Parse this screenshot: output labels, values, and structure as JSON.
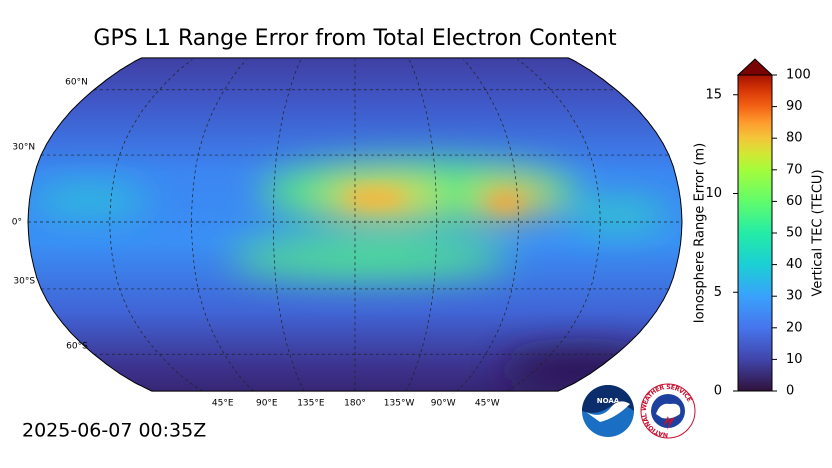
{
  "title": "GPS L1 Range Error from Total Electron Content",
  "timestamp": "2025-06-07 00:35Z",
  "map": {
    "lat_labels": [
      "60°N",
      "30°N",
      "0°",
      "30°S",
      "60°S"
    ],
    "lon_labels": [
      "45°E",
      "90°E",
      "135°E",
      "180°",
      "135°W",
      "90°W",
      "45°W"
    ]
  },
  "colorbar": {
    "range_error": {
      "label": "Ionosphere Range Error (m)",
      "lim": [
        0,
        16
      ],
      "ticks": [
        0,
        5,
        10,
        15
      ]
    },
    "tec": {
      "label": "Vertical TEC (TECU)",
      "lim": [
        0,
        100
      ],
      "ticks": [
        0,
        10,
        20,
        30,
        40,
        50,
        60,
        70,
        80,
        90,
        100
      ]
    }
  },
  "logos": {
    "noaa": "NOAA",
    "nws": "NATIONAL WEATHER SERVICE"
  }
}
